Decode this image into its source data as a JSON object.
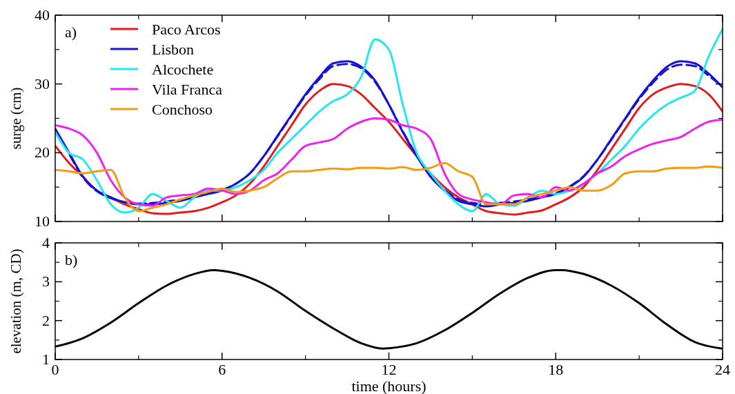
{
  "chart_data": [
    {
      "type": "line",
      "ylabel": "surge (cm)",
      "annotations": [
        "a)"
      ],
      "legend": "top left",
      "tick_labels": "y",
      "line_style": "solid",
      "marker": "none",
      "xlim": [
        0,
        24
      ],
      "xticks": [
        0,
        6,
        12,
        18,
        24
      ],
      "ylim": [
        10,
        40
      ],
      "yticks": [
        10,
        20,
        30,
        40
      ],
      "x": [
        0,
        0.5,
        1,
        1.5,
        2,
        2.5,
        3,
        3.5,
        4,
        4.5,
        5,
        5.5,
        6,
        6.5,
        7,
        7.5,
        8,
        8.5,
        9,
        9.5,
        10,
        10.5,
        11,
        11.5,
        12,
        12.5,
        13,
        13.5,
        14,
        14.5,
        15,
        15.5,
        16,
        16.5,
        17,
        17.5,
        18,
        18.5,
        19,
        19.5,
        20,
        20.5,
        21,
        21.5,
        22,
        22.5,
        23,
        23.5,
        24
      ],
      "series": [
        {
          "name": "Paco Arcos",
          "color": "#e41a1c",
          "values": [
            21,
            18.5,
            16.5,
            14.5,
            13.5,
            12.5,
            11.8,
            11.2,
            11.1,
            11.3,
            11.5,
            12,
            12.8,
            13.8,
            15.5,
            18,
            21,
            24,
            27,
            29,
            30,
            29.7,
            28.5,
            26.5,
            24.5,
            22,
            19.5,
            17,
            15,
            13.5,
            12.5,
            11.5,
            11.2,
            11,
            11.3,
            11.6,
            12.5,
            13.5,
            15,
            17.5,
            20.5,
            23.5,
            26.5,
            28.5,
            29.5,
            30,
            29.7,
            28.5,
            26
          ]
        },
        {
          "name": "Lisbon",
          "color": "#1414d2",
          "values": [
            23.5,
            20,
            16.5,
            14.5,
            13.5,
            12.8,
            12.5,
            12.5,
            12.7,
            13,
            13.5,
            14,
            14.5,
            15.5,
            17,
            19.5,
            22.5,
            25.5,
            28.5,
            31,
            33,
            33.3,
            32.5,
            30.5,
            27,
            23,
            19.5,
            16.5,
            14.5,
            13,
            12.5,
            12.2,
            12.5,
            12.7,
            13,
            13.5,
            14,
            15,
            16.5,
            19,
            22,
            25,
            28,
            30.5,
            32.5,
            33.3,
            33,
            31.5,
            29.5
          ]
        },
        {
          "color": "#1414d2",
          "line_style": "dashed",
          "values": [
            23.3,
            19.8,
            16.4,
            14.4,
            13.4,
            12.8,
            12.6,
            12.7,
            12.9,
            13.2,
            13.6,
            14.1,
            14.6,
            15.5,
            17,
            19.5,
            22.4,
            25.4,
            28.3,
            30.7,
            32.6,
            32.9,
            32.3,
            30.3,
            27,
            23.1,
            19.6,
            16.6,
            14.6,
            13.2,
            12.7,
            12.5,
            12.7,
            12.9,
            13.2,
            13.6,
            14.1,
            15.1,
            16.6,
            19,
            21.9,
            24.9,
            27.8,
            30.2,
            32.1,
            32.8,
            32.6,
            31.2,
            29.6
          ]
        },
        {
          "name": "Alcochete",
          "color": "#22e8ee",
          "values": [
            23,
            20,
            19,
            16,
            12.5,
            11.3,
            12,
            14,
            13,
            12,
            13.5,
            14.5,
            14.5,
            15,
            16,
            17.5,
            20,
            22,
            24,
            26,
            27.5,
            28.5,
            31,
            36.5,
            35,
            27,
            20,
            17,
            14.5,
            12.5,
            11.5,
            14,
            12.5,
            12.3,
            13.5,
            14.5,
            14,
            14.5,
            15.5,
            17,
            19,
            21,
            23.5,
            25.5,
            27,
            28,
            29,
            34,
            38
          ]
        },
        {
          "name": "Vila Franca",
          "color": "#ee22ee",
          "values": [
            24,
            23.5,
            22.5,
            20,
            16,
            13.5,
            12.5,
            12.3,
            13.5,
            13.8,
            14,
            14.8,
            14.5,
            14,
            14.5,
            16,
            17,
            19,
            21,
            21.5,
            22,
            23.5,
            24.5,
            25,
            24.8,
            24,
            23.5,
            22,
            17,
            14,
            13.2,
            12.8,
            12.5,
            13.8,
            14,
            13.5,
            15,
            14.5,
            15.5,
            17,
            18,
            19.5,
            20.5,
            21.3,
            21.8,
            22.3,
            23.5,
            24.5,
            24.8
          ]
        },
        {
          "name": "Conchoso",
          "color": "#f59b10",
          "values": [
            17.5,
            17.3,
            17,
            17.3,
            17.5,
            13.5,
            11.5,
            12,
            12.5,
            13.2,
            13.8,
            14.3,
            14.8,
            14.3,
            14.5,
            15,
            16.3,
            17.3,
            17.3,
            17.5,
            17.7,
            17.6,
            17.8,
            17.8,
            17.7,
            17.9,
            17.5,
            17.8,
            18.5,
            17.3,
            16.5,
            12.5,
            12.5,
            12.5,
            13.5,
            14,
            14.5,
            15,
            14.5,
            14.5,
            15.3,
            17,
            17.3,
            17.3,
            17.7,
            17.8,
            17.8,
            18,
            17.8
          ]
        }
      ]
    },
    {
      "type": "line",
      "xlabel": "time (hours)",
      "ylabel": "elevation (m, CD)",
      "annotations": [
        "b)"
      ],
      "legend": false,
      "line_style": "solid",
      "marker": "none",
      "xlim": [
        0,
        24
      ],
      "xticks": [
        0,
        6,
        12,
        18,
        24
      ],
      "ylim": [
        1,
        4
      ],
      "yticks": [
        1,
        2,
        3,
        4
      ],
      "x": [
        0,
        1,
        2,
        3,
        4,
        5,
        5.7,
        6,
        7,
        8,
        9,
        10,
        11,
        11.8,
        12,
        13,
        14,
        15,
        16,
        17,
        18,
        18.2,
        19,
        20,
        21,
        22,
        23,
        24
      ],
      "series": [
        {
          "color": "#000000",
          "values": [
            1.33,
            1.55,
            1.95,
            2.45,
            2.9,
            3.2,
            3.3,
            3.28,
            3.1,
            2.75,
            2.25,
            1.8,
            1.42,
            1.28,
            1.29,
            1.42,
            1.75,
            2.2,
            2.7,
            3.1,
            3.3,
            3.3,
            3.2,
            2.9,
            2.45,
            1.9,
            1.45,
            1.28
          ]
        }
      ]
    }
  ]
}
